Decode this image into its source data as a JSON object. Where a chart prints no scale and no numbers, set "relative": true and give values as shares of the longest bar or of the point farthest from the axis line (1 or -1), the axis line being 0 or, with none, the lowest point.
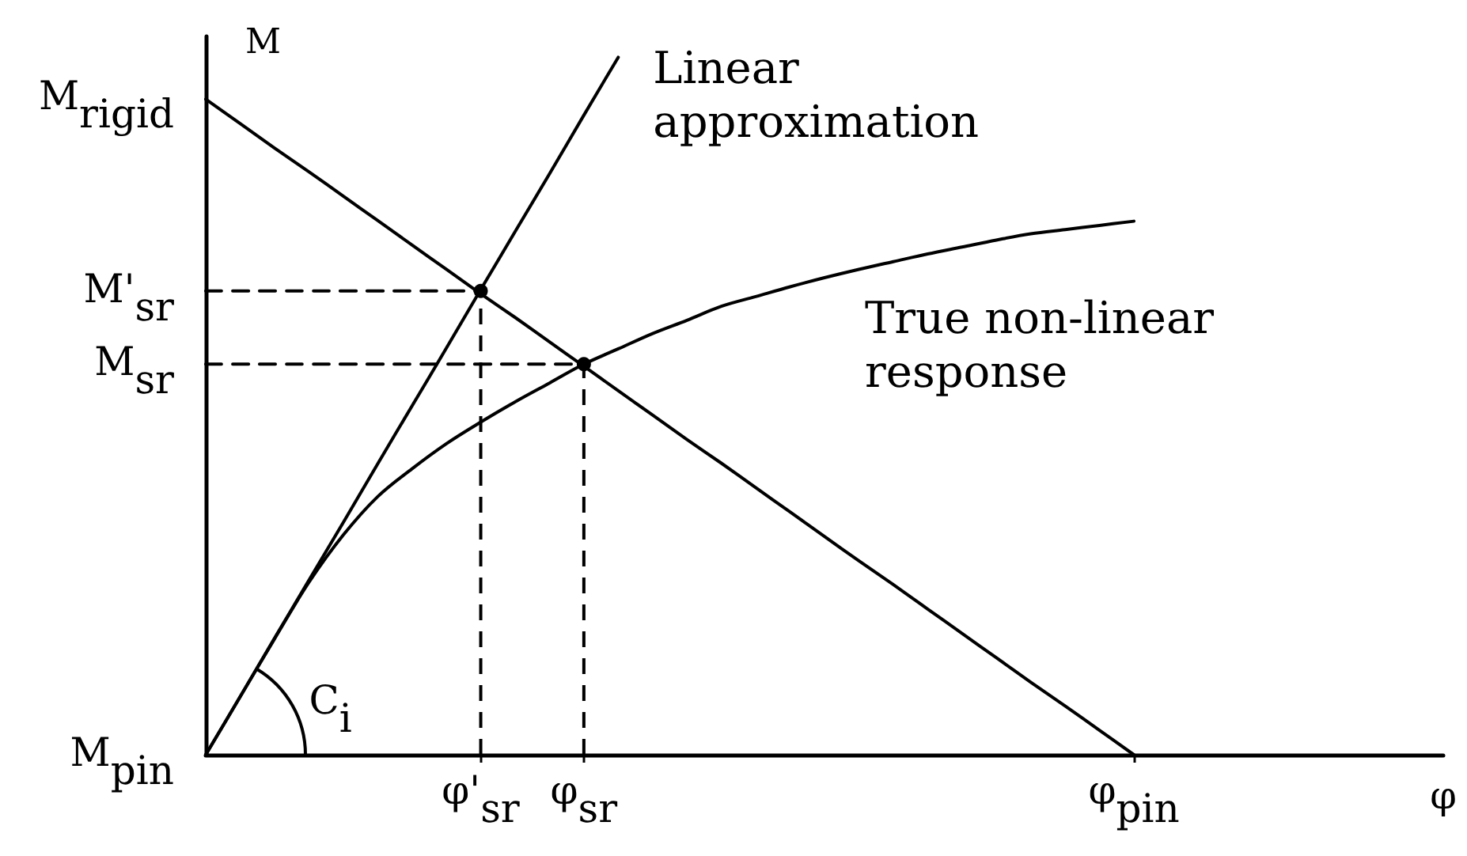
{
  "chart_data": {
    "type": "line",
    "relative": true,
    "xlabel": "φ",
    "ylabel": "M",
    "tick_labels": "x",
    "categories": [
      null,
      null,
      null,
      null,
      null,
      null,
      null,
      null,
      "φ'$_{sr}$",
      null,
      null,
      "φ$_{sr}$",
      null,
      null,
      null,
      null,
      null,
      null,
      null,
      null,
      null,
      null,
      null,
      null,
      null,
      null,
      null,
      "φ$_{pin}$",
      null,
      null,
      null,
      null,
      null,
      null,
      null,
      null,
      null
    ],
    "series": [
      {
        "name": "Linear approximation",
        "color": "#000000",
        "values": [
          0,
          0.083,
          0.167,
          0.25,
          0.333,
          0.417,
          0.5,
          0.583,
          0.667,
          0.75,
          0.833,
          0.917,
          1,
          null,
          null,
          null,
          null,
          null,
          null,
          null,
          null,
          null,
          null,
          null,
          null,
          null,
          null,
          null,
          null,
          null,
          null,
          null,
          null,
          null,
          null,
          null,
          null
        ]
      },
      {
        "name": "True non-linear response",
        "color": "#000000",
        "values": [
          0,
          0.083,
          0.166,
          0.247,
          0.315,
          0.37,
          0.41,
          0.446,
          0.477,
          0.506,
          0.533,
          0.56,
          0.582,
          0.604,
          0.623,
          0.643,
          0.657,
          0.671,
          0.684,
          0.696,
          0.707,
          0.718,
          0.728,
          0.738,
          0.747,
          0.753,
          0.759,
          0.765,
          null,
          null,
          null,
          null,
          null,
          null,
          null,
          null,
          null
        ]
      },
      {
        "color": "#000000",
        "values": [
          0.94,
          0.905,
          0.87,
          0.836,
          0.801,
          0.766,
          0.731,
          0.696,
          0.661,
          0.627,
          0.592,
          0.557,
          0.522,
          0.487,
          0.452,
          0.418,
          0.383,
          0.348,
          0.313,
          0.278,
          0.244,
          0.209,
          0.174,
          0.139,
          0.104,
          0.07,
          0.035,
          0,
          null,
          null,
          null,
          null,
          null,
          null,
          null,
          null,
          null
        ]
      },
      {
        "color": "#000000",
        "line_style": "dashed",
        "values": [
          0.665,
          0.665,
          0.665,
          0.665,
          0.665,
          0.665,
          0.665,
          0.665,
          0.665,
          null,
          null,
          null,
          null,
          null,
          null,
          null,
          null,
          null,
          null,
          null,
          null,
          null,
          null,
          null,
          null,
          null,
          null,
          null,
          null,
          null,
          null,
          null,
          null,
          null,
          null,
          null,
          null
        ]
      },
      {
        "color": "#000000",
        "line_style": "dashed",
        "values": [
          0.56,
          0.56,
          0.56,
          0.56,
          0.56,
          0.56,
          0.56,
          0.56,
          0.56,
          0.56,
          0.56,
          0.56,
          null,
          null,
          null,
          null,
          null,
          null,
          null,
          null,
          null,
          null,
          null,
          null,
          null,
          null,
          null,
          null,
          null,
          null,
          null,
          null,
          null,
          null,
          null,
          null,
          null
        ]
      },
      {
        "type": "lollipop",
        "color": "#000000",
        "line_style": "dashed",
        "marker": "circle",
        "values": [
          null,
          null,
          null,
          null,
          null,
          null,
          null,
          null,
          0.665,
          null,
          null,
          0.56,
          null,
          null,
          null,
          null,
          null,
          null,
          null,
          null,
          null,
          null,
          null,
          null,
          null,
          null,
          null,
          null,
          null,
          null,
          null,
          null,
          null,
          null,
          null,
          null,
          null
        ]
      }
    ],
    "annotations": [
      "M$_{rigid}$",
      "M'$_{sr}$",
      "M$_{sr}$",
      "M$_{pin}$",
      "C$_{i}$"
    ]
  }
}
